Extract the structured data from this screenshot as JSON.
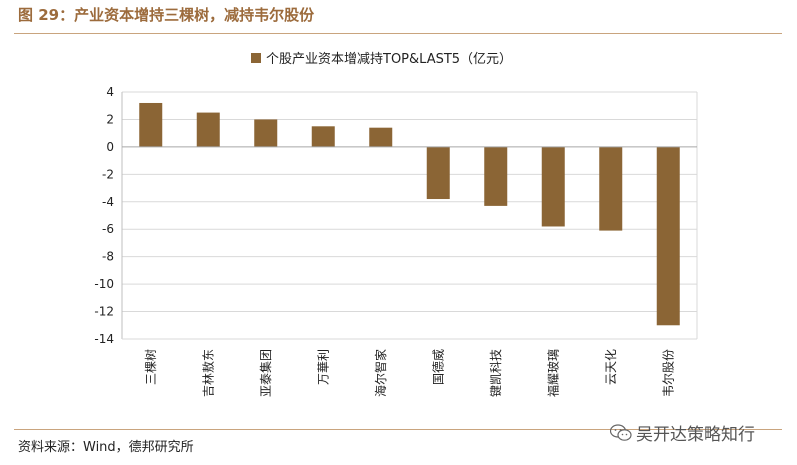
{
  "figure": {
    "title": "图 29：产业资本增持三棵树，减持韦尔股份",
    "source": "资料来源：Wind，德邦研究所",
    "watermark": "吴开达策略知行"
  },
  "colors": {
    "bar": "#8b6535",
    "accent": "#9c6b3c",
    "rule": "#c9a47e",
    "grid": "#d9d9d9"
  },
  "chart_data": {
    "type": "bar",
    "title": "",
    "legend": "个股产业资本增减持TOP&LAST5（亿元）",
    "legend_position": "top-center",
    "categories": [
      "三棵树",
      "吉林敖东",
      "亚泰集团",
      "万華利",
      "海尔智家",
      "国德威",
      "键凯科技",
      "福耀玻璃",
      "云天化",
      "韦尔股份"
    ],
    "values": [
      3.2,
      2.5,
      2.0,
      1.5,
      1.4,
      -3.8,
      -4.3,
      -5.8,
      -6.1,
      -13.0
    ],
    "ylim": [
      -14,
      4
    ],
    "yticks": [
      4,
      2,
      0,
      -2,
      -4,
      -6,
      -8,
      -10,
      -12,
      -14
    ],
    "grid": true,
    "xlabel": "",
    "ylabel": ""
  }
}
